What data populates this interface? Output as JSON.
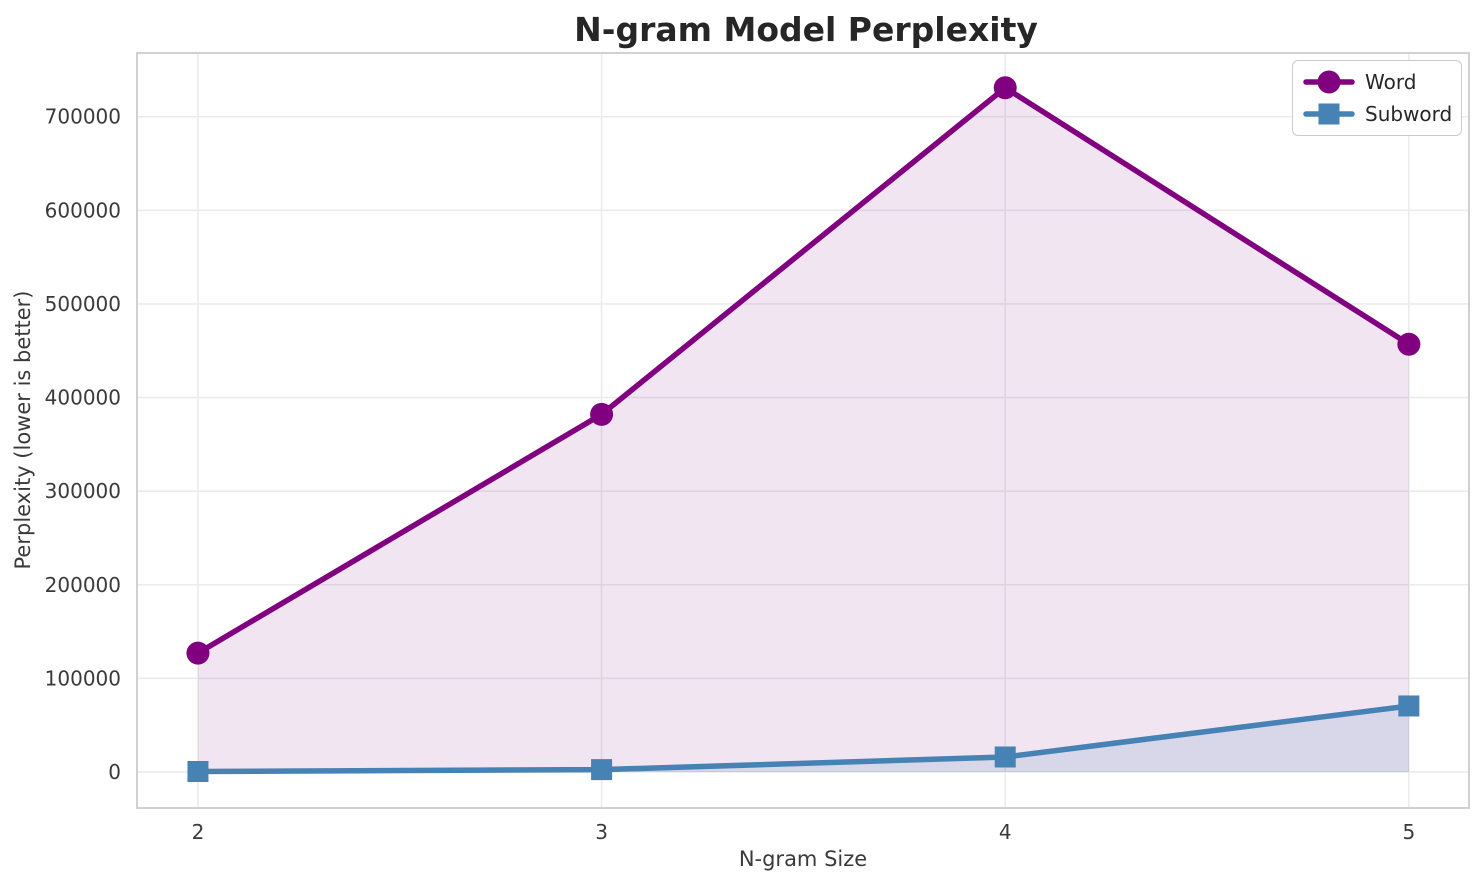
{
  "page": {
    "background": "#ffffff"
  },
  "chart_data": {
    "type": "line",
    "title": "N-gram Model Perplexity",
    "xlabel": "N-gram Size",
    "ylabel": "Perplexity (lower is better)",
    "x": [
      2,
      3,
      4,
      5
    ],
    "x_tick_labels": [
      "2",
      "3",
      "4",
      "5"
    ],
    "y_ticks": [
      0,
      100000,
      200000,
      300000,
      400000,
      500000,
      600000,
      700000
    ],
    "y_tick_labels": [
      "0",
      "100000",
      "200000",
      "300000",
      "400000",
      "500000",
      "600000",
      "700000"
    ],
    "xlim": [
      1.849,
      5.149
    ],
    "ylim": [
      -38500,
      768100
    ],
    "grid": true,
    "legend_position": "upper right",
    "fill_baseline": 0,
    "series": [
      {
        "name": "Word",
        "marker": "circle",
        "color": "#800080",
        "fill_opacity": 0.1,
        "values": [
          127000,
          382000,
          731000,
          457000
        ]
      },
      {
        "name": "Subword",
        "marker": "square",
        "color": "#4682B4",
        "fill_opacity": 0.15,
        "values": [
          500,
          2500,
          16000,
          70500
        ]
      }
    ],
    "styles": {
      "grid_color": "#ebebeb",
      "spine_color": "#cccccc",
      "tick_color": "#3a3a3a",
      "title_color": "#262626",
      "line_width": 5.5,
      "marker_size": 23
    }
  }
}
